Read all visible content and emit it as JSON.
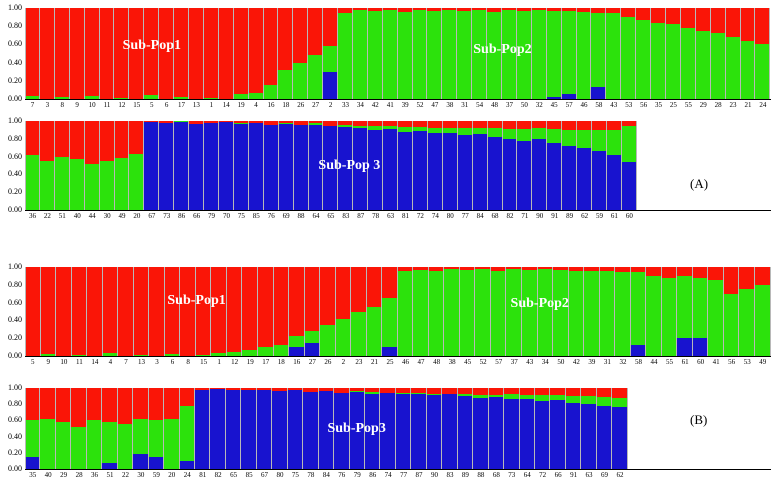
{
  "figure": {
    "background": "#ffffff"
  },
  "chart_data": {
    "type": "bar",
    "subtype": "stacked-admixture-structure-plot",
    "ylim": [
      0,
      1
    ],
    "stack_order_bottom_to_top": [
      "blue",
      "green",
      "red"
    ],
    "colors": {
      "red": "#fa1507",
      "green": "#2ce20c",
      "blue": "#1813cf"
    },
    "panels": [
      {
        "id": "a-top",
        "group": "A",
        "side_label": "",
        "yticks": [
          "1.00",
          "0.80",
          "0.60",
          "0.40",
          "0.20",
          "0.00"
        ],
        "labels": [
          "7",
          "3",
          "8",
          "9",
          "10",
          "11",
          "12",
          "15",
          "5",
          "6",
          "17",
          "13",
          "1",
          "14",
          "19",
          "4",
          "16",
          "18",
          "26",
          "27",
          "2",
          "33",
          "34",
          "42",
          "41",
          "39",
          "52",
          "47",
          "38",
          "31",
          "54",
          "48",
          "37",
          "50",
          "32",
          "45",
          "57",
          "46",
          "58",
          "43",
          "53",
          "56",
          "35",
          "25",
          "55",
          "29",
          "28",
          "23",
          "21",
          "24"
        ],
        "red": [
          0.97,
          1,
          0.98,
          1,
          0.97,
          1,
          0.99,
          1,
          0.96,
          1,
          0.98,
          1,
          0.99,
          1,
          0.95,
          0.93,
          0.85,
          0.68,
          0.6,
          0.52,
          0.42,
          0.05,
          0.02,
          0.03,
          0.02,
          0.04,
          0.02,
          0.03,
          0.02,
          0.03,
          0.02,
          0.04,
          0.02,
          0.03,
          0.02,
          0.03,
          0.03,
          0.04,
          0.05,
          0.06,
          0.1,
          0.13,
          0.16,
          0.18,
          0.22,
          0.25,
          0.28,
          0.32,
          0.36,
          0.4
        ],
        "green": [
          0.03,
          0,
          0.02,
          0,
          0.03,
          0,
          0.01,
          0,
          0.04,
          0,
          0.02,
          0,
          0.01,
          0,
          0.05,
          0.07,
          0.15,
          0.32,
          0.4,
          0.48,
          0.28,
          0.95,
          0.98,
          0.97,
          0.98,
          0.96,
          0.98,
          0.97,
          0.98,
          0.97,
          0.98,
          0.96,
          0.98,
          0.97,
          0.98,
          0.95,
          0.92,
          0.96,
          0.82,
          0.94,
          0.9,
          0.87,
          0.84,
          0.82,
          0.78,
          0.75,
          0.72,
          0.68,
          0.64,
          0.6
        ],
        "blue": [
          0,
          0,
          0,
          0,
          0,
          0,
          0,
          0,
          0,
          0,
          0,
          0,
          0,
          0,
          0,
          0,
          0,
          0,
          0,
          0,
          0.3,
          0,
          0,
          0,
          0,
          0,
          0,
          0,
          0,
          0,
          0,
          0,
          0,
          0,
          0,
          0.02,
          0.05,
          0,
          0.13,
          0,
          0,
          0,
          0,
          0,
          0,
          0,
          0,
          0,
          0,
          0
        ],
        "pop_labels": [
          {
            "text": "Sub-Pop1",
            "x_pct": 17,
            "y_pct": 42
          },
          {
            "text": "Sub-Pop2",
            "x_pct": 64,
            "y_pct": 46
          }
        ]
      },
      {
        "id": "a-bottom",
        "group": "A",
        "side_label": "(A)",
        "yticks": [
          "1.00",
          "0.80",
          "0.60",
          "0.40",
          "0.20",
          "0.00"
        ],
        "labels": [
          "36",
          "22",
          "51",
          "40",
          "44",
          "30",
          "49",
          "20",
          "67",
          "73",
          "86",
          "66",
          "79",
          "70",
          "75",
          "85",
          "76",
          "69",
          "88",
          "64",
          "65",
          "83",
          "87",
          "78",
          "63",
          "81",
          "72",
          "74",
          "80",
          "77",
          "84",
          "68",
          "82",
          "71",
          "90",
          "91",
          "89",
          "62",
          "59",
          "61",
          "60"
        ],
        "red": [
          0.38,
          0.45,
          0.4,
          0.43,
          0.48,
          0.45,
          0.42,
          0.37,
          0.01,
          0.02,
          0,
          0.03,
          0.02,
          0.01,
          0.02,
          0.02,
          0.04,
          0.02,
          0.05,
          0.02,
          0.06,
          0.05,
          0.06,
          0.06,
          0.06,
          0.07,
          0.07,
          0.08,
          0.08,
          0.08,
          0.08,
          0.08,
          0.09,
          0.09,
          0.08,
          0.09,
          0.1,
          0.1,
          0.1,
          0.1,
          0.06
        ],
        "green": [
          0.62,
          0.55,
          0.6,
          0.57,
          0.52,
          0.55,
          0.58,
          0.63,
          0,
          0,
          0.01,
          0,
          0,
          0,
          0.01,
          0,
          0,
          0.01,
          0,
          0.02,
          0,
          0.02,
          0.02,
          0.04,
          0.03,
          0.05,
          0.04,
          0.06,
          0.05,
          0.08,
          0.07,
          0.1,
          0.11,
          0.13,
          0.12,
          0.16,
          0.18,
          0.2,
          0.24,
          0.28,
          0.4
        ],
        "blue": [
          0,
          0,
          0,
          0,
          0,
          0,
          0,
          0,
          0.99,
          0.98,
          0.99,
          0.97,
          0.98,
          0.99,
          0.97,
          0.98,
          0.96,
          0.97,
          0.95,
          0.96,
          0.94,
          0.93,
          0.92,
          0.9,
          0.91,
          0.88,
          0.89,
          0.86,
          0.87,
          0.84,
          0.85,
          0.82,
          0.8,
          0.78,
          0.8,
          0.75,
          0.72,
          0.7,
          0.66,
          0.62,
          0.54
        ],
        "pop_labels": [
          {
            "text": "Sub-Pop 3",
            "x_pct": 53,
            "y_pct": 50
          }
        ]
      },
      {
        "id": "b-top",
        "group": "B",
        "side_label": "",
        "yticks": [
          "1.00",
          "0.80",
          "0.60",
          "0.40",
          "0.20",
          "0.00"
        ],
        "labels": [
          "5",
          "9",
          "10",
          "11",
          "14",
          "4",
          "7",
          "13",
          "3",
          "6",
          "8",
          "15",
          "1",
          "12",
          "19",
          "17",
          "18",
          "16",
          "27",
          "26",
          "2",
          "23",
          "21",
          "25",
          "46",
          "47",
          "48",
          "38",
          "45",
          "52",
          "57",
          "37",
          "43",
          "34",
          "50",
          "42",
          "39",
          "31",
          "32",
          "58",
          "44",
          "55",
          "61",
          "60",
          "41",
          "56",
          "53",
          "49"
        ],
        "red": [
          1,
          0.98,
          1,
          0.99,
          1,
          0.97,
          1,
          0.99,
          1,
          0.98,
          1,
          0.99,
          0.97,
          0.95,
          0.93,
          0.9,
          0.88,
          0.78,
          0.72,
          0.65,
          0.58,
          0.5,
          0.45,
          0.35,
          0.05,
          0.03,
          0.04,
          0.02,
          0.03,
          0.02,
          0.04,
          0.02,
          0.03,
          0.02,
          0.03,
          0.04,
          0.05,
          0.04,
          0.06,
          0.06,
          0.1,
          0.12,
          0.1,
          0.12,
          0.15,
          0.3,
          0.25,
          0.2
        ],
        "green": [
          0,
          0.02,
          0,
          0.01,
          0,
          0.03,
          0,
          0.01,
          0,
          0.02,
          0,
          0.01,
          0.03,
          0.05,
          0.07,
          0.1,
          0.12,
          0.12,
          0.13,
          0.35,
          0.42,
          0.5,
          0.55,
          0.55,
          0.95,
          0.97,
          0.96,
          0.98,
          0.97,
          0.98,
          0.96,
          0.98,
          0.97,
          0.98,
          0.97,
          0.96,
          0.95,
          0.96,
          0.94,
          0.82,
          0.9,
          0.88,
          0.7,
          0.68,
          0.85,
          0.7,
          0.75,
          0.8
        ],
        "blue": [
          0,
          0,
          0,
          0,
          0,
          0,
          0,
          0,
          0,
          0,
          0,
          0,
          0,
          0,
          0,
          0,
          0,
          0.1,
          0.15,
          0,
          0,
          0,
          0,
          0.1,
          0,
          0,
          0,
          0,
          0,
          0,
          0,
          0,
          0,
          0,
          0,
          0,
          0,
          0,
          0,
          0.12,
          0,
          0,
          0.2,
          0.2,
          0,
          0,
          0,
          0
        ],
        "pop_labels": [
          {
            "text": "Sub-Pop1",
            "x_pct": 23,
            "y_pct": 38
          },
          {
            "text": "Sub-Pop2",
            "x_pct": 69,
            "y_pct": 42
          }
        ]
      },
      {
        "id": "b-bottom",
        "group": "B",
        "side_label": "(B)",
        "yticks": [
          "1.00",
          "0.80",
          "0.60",
          "0.40",
          "0.20",
          "0.00"
        ],
        "labels": [
          "35",
          "40",
          "29",
          "28",
          "36",
          "51",
          "22",
          "30",
          "59",
          "20",
          "24",
          "81",
          "82",
          "65",
          "85",
          "67",
          "80",
          "75",
          "78",
          "84",
          "76",
          "79",
          "86",
          "74",
          "77",
          "87",
          "90",
          "83",
          "89",
          "88",
          "68",
          "73",
          "64",
          "72",
          "66",
          "91",
          "63",
          "69",
          "62"
        ],
        "red": [
          0.4,
          0.38,
          0.42,
          0.48,
          0.4,
          0.42,
          0.45,
          0.38,
          0.4,
          0.38,
          0.22,
          0.02,
          0.01,
          0.03,
          0.02,
          0.03,
          0.04,
          0.03,
          0.05,
          0.04,
          0.06,
          0.04,
          0.05,
          0.06,
          0.06,
          0.06,
          0.07,
          0.07,
          0.07,
          0.08,
          0.08,
          0.08,
          0.09,
          0.09,
          0.09,
          0.1,
          0.1,
          0.11,
          0.12
        ],
        "green": [
          0.45,
          0.62,
          0.58,
          0.52,
          0.6,
          0.5,
          0.55,
          0.44,
          0.45,
          0.62,
          0.68,
          0,
          0,
          0,
          0,
          0,
          0,
          0,
          0,
          0,
          0,
          0.01,
          0.02,
          0,
          0.02,
          0.01,
          0.02,
          0.01,
          0.03,
          0.04,
          0.03,
          0.05,
          0.05,
          0.07,
          0.06,
          0.08,
          0.1,
          0.11,
          0.12
        ],
        "blue": [
          0.15,
          0,
          0,
          0,
          0,
          0.08,
          0,
          0.18,
          0.15,
          0,
          0.1,
          0.98,
          0.99,
          0.97,
          0.98,
          0.97,
          0.96,
          0.97,
          0.95,
          0.96,
          0.94,
          0.95,
          0.93,
          0.94,
          0.92,
          0.93,
          0.91,
          0.92,
          0.9,
          0.88,
          0.89,
          0.87,
          0.86,
          0.84,
          0.85,
          0.82,
          0.8,
          0.78,
          0.76
        ],
        "pop_labels": [
          {
            "text": "Sub-Pop3",
            "x_pct": 55,
            "y_pct": 50
          }
        ]
      }
    ]
  }
}
